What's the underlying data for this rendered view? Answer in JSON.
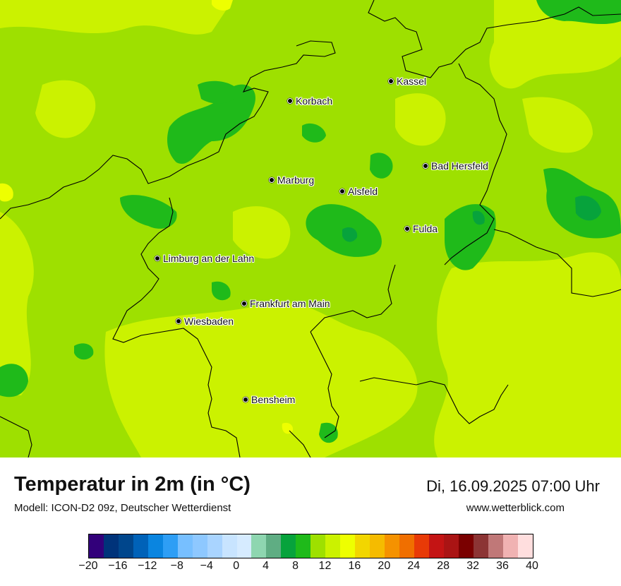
{
  "map": {
    "cities": [
      {
        "name": "Kassel"
      },
      {
        "name": "Korbach"
      },
      {
        "name": "Bad Hersfeld"
      },
      {
        "name": "Marburg"
      },
      {
        "name": "Alsfeld"
      },
      {
        "name": "Fulda"
      },
      {
        "name": "Limburg an der Lahn"
      },
      {
        "name": "Frankfurt am Main"
      },
      {
        "name": "Wiesbaden"
      },
      {
        "name": "Bensheim"
      }
    ]
  },
  "footer": {
    "title": "Temperatur in 2m (in °C)",
    "subtitle": "Modell: ICON-D2 09z, Deutscher Wetterdienst",
    "datetime": "Di, 16.09.2025 07:00 Uhr",
    "website": "www.wetterblick.com"
  },
  "color_scale": {
    "colors": [
      "#32007a",
      "#00337a",
      "#00468c",
      "#0062b8",
      "#0a85e0",
      "#2e9ef5",
      "#77bfff",
      "#8ec8ff",
      "#a9d4ff",
      "#c8e4ff",
      "#d6ebff",
      "#8ed6b0",
      "#5fad83",
      "#07a33c",
      "#1fba1a",
      "#9ee000",
      "#cbf200",
      "#eeff00",
      "#f2d600",
      "#f5bb00",
      "#f59200",
      "#f06f00",
      "#e83a07",
      "#c41414",
      "#aa1414",
      "#7a0000",
      "#8c3434",
      "#c07878",
      "#f0b2b2",
      "#ffdede"
    ],
    "tick_labels": [
      "−20",
      "−16",
      "−12",
      "−8",
      "−4",
      "0",
      "4",
      "8",
      "12",
      "16",
      "20",
      "24",
      "28",
      "32",
      "36",
      "40"
    ]
  }
}
